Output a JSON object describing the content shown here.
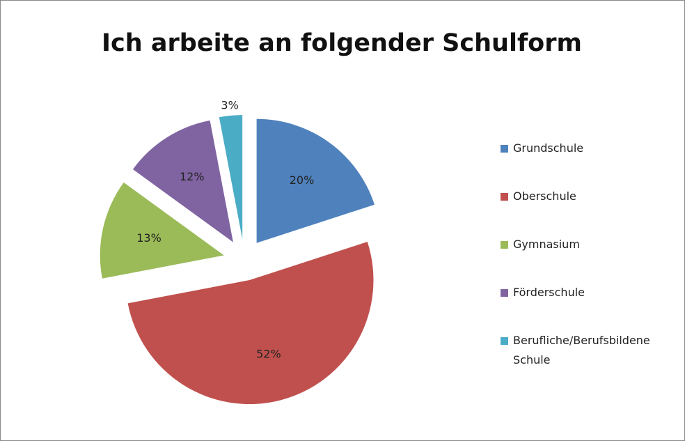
{
  "chart_data": {
    "type": "pie",
    "title": "Ich arbeite an folgender Schulform",
    "categories": [
      "Grundschule",
      "Oberschule",
      "Gymnasium",
      "Förderschule",
      "Berufliche/Berufsbildene Schule"
    ],
    "values": [
      20,
      52,
      13,
      12,
      3
    ],
    "value_labels": [
      "20%",
      "52%",
      "13%",
      "12%",
      "3%"
    ],
    "colors": [
      "#4f81bd",
      "#c0504d",
      "#9bbb59",
      "#8064a2",
      "#4bacc6"
    ],
    "legend": "right"
  }
}
